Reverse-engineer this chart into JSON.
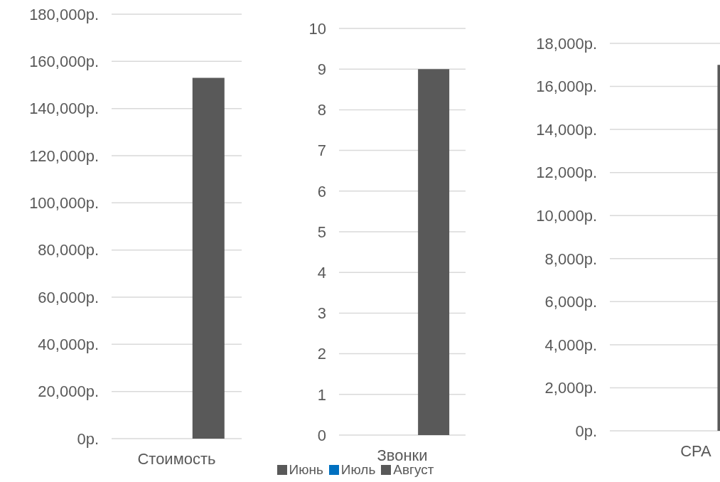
{
  "chart_data": [
    {
      "type": "bar",
      "categories": [
        "Стоимость"
      ],
      "series": [
        {
          "color": "#595959",
          "values": [
            null
          ]
        },
        {
          "color": "#0070c0",
          "values": [
            null
          ]
        },
        {
          "color": "#595959",
          "values": [
            153000
          ]
        }
      ],
      "ylim": [
        0,
        180000
      ],
      "yticks": [
        {
          "value": 0,
          "label": "0р."
        },
        {
          "value": 20000,
          "label": "20,000р."
        },
        {
          "value": 40000,
          "label": "40,000р."
        },
        {
          "value": 60000,
          "label": "60,000р."
        },
        {
          "value": 80000,
          "label": "80,000р."
        },
        {
          "value": 100000,
          "label": "100,000р."
        },
        {
          "value": 120000,
          "label": "120,000р."
        },
        {
          "value": 140000,
          "label": "140,000р."
        },
        {
          "value": 160000,
          "label": "160,000р."
        },
        {
          "value": 180000,
          "label": "180,000р."
        }
      ],
      "grid": "y",
      "legend": false
    },
    {
      "type": "bar",
      "categories": [
        "Звонки"
      ],
      "series": [
        {
          "name": "Июнь",
          "color": "#595959",
          "values": [
            null
          ]
        },
        {
          "name": "Июль",
          "color": "#0070c0",
          "values": [
            null
          ]
        },
        {
          "name": "Август",
          "color": "#595959",
          "values": [
            9
          ]
        }
      ],
      "ylim": [
        0,
        10
      ],
      "yticks": [
        0,
        1,
        2,
        3,
        4,
        5,
        6,
        7,
        8,
        9,
        10
      ],
      "grid": "y",
      "legend": "bottom"
    },
    {
      "type": "bar",
      "categories": [
        "CPA"
      ],
      "series": [
        {
          "color": "#595959",
          "values": [
            null
          ]
        },
        {
          "color": "#0070c0",
          "values": [
            null
          ]
        },
        {
          "color": "#595959",
          "values": [
            17000
          ]
        }
      ],
      "ylim": [
        0,
        18000
      ],
      "yticks": [
        {
          "value": 0,
          "label": "0р."
        },
        {
          "value": 2000,
          "label": "2,000р."
        },
        {
          "value": 4000,
          "label": "4,000р."
        },
        {
          "value": 6000,
          "label": "6,000р."
        },
        {
          "value": 8000,
          "label": "8,000р."
        },
        {
          "value": 10000,
          "label": "10,000р."
        },
        {
          "value": 12000,
          "label": "12,000р."
        },
        {
          "value": 14000,
          "label": "14,000р."
        },
        {
          "value": 16000,
          "label": "16,000р."
        },
        {
          "value": 18000,
          "label": "18,000р."
        }
      ],
      "grid": "y",
      "legend": false
    }
  ]
}
